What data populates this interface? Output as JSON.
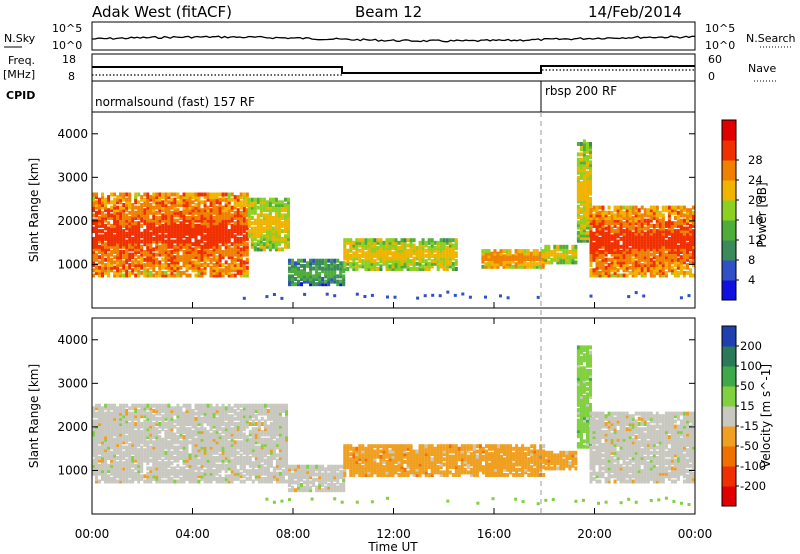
{
  "header": {
    "station": "Adak West (fitACF)",
    "beam": "Beam 12",
    "date": "14/Feb/2014"
  },
  "top_panel": {
    "left_label": "N.Sky",
    "right_label": "N.Search",
    "left_ticks": [
      "10^5",
      "10^0"
    ],
    "right_ticks": [
      "10^5",
      "10^0"
    ]
  },
  "freq_panel": {
    "left_label_1": "Freq.",
    "left_label_2": "[MHz]",
    "right_label": "Nave",
    "left_ticks": [
      "18",
      "8"
    ],
    "right_ticks": [
      "60",
      "0"
    ]
  },
  "cpid_panel": {
    "label": "CPID",
    "mode_1": "normalsound (fast) 157 RF",
    "mode_2": "rbsp 200 RF"
  },
  "chart_data": [
    {
      "type": "heatmap",
      "title": "Power",
      "ylabel": "Slant Range [km]",
      "y_ticks": [
        "1000",
        "2000",
        "3000",
        "4000"
      ],
      "ylim": [
        0,
        4500
      ],
      "colorbar": {
        "label": "Power [dB]",
        "ticks": [
          "4",
          "8",
          "12",
          "16",
          "20",
          "24",
          "28"
        ],
        "colors": [
          "#1010e0",
          "#3050c8",
          "#3a8a5a",
          "#4fae3a",
          "#8cd020",
          "#f0b400",
          "#f08000",
          "#f03000",
          "#e00000"
        ]
      },
      "regions": [
        {
          "x0": 0.0,
          "x1": 6.2,
          "y0": 700,
          "y1": 2600,
          "level": 26
        },
        {
          "x0": 6.2,
          "x1": 7.8,
          "y0": 1300,
          "y1": 2500,
          "level": 18
        },
        {
          "x0": 7.8,
          "x1": 10.0,
          "y0": 500,
          "y1": 1050,
          "level": 10
        },
        {
          "x0": 10.0,
          "x1": 14.5,
          "y0": 850,
          "y1": 1550,
          "level": 20
        },
        {
          "x0": 15.5,
          "x1": 18.0,
          "y0": 900,
          "y1": 1300,
          "level": 22
        },
        {
          "x0": 18.0,
          "x1": 19.3,
          "y0": 1000,
          "y1": 1400,
          "level": 20
        },
        {
          "x0": 19.3,
          "x1": 19.8,
          "y0": 1500,
          "y1": 3800,
          "level": 18
        },
        {
          "x0": 19.8,
          "x1": 24.0,
          "y0": 700,
          "y1": 2300,
          "level": 26
        }
      ]
    },
    {
      "type": "heatmap",
      "title": "Velocity",
      "ylabel": "Slant Range [km]",
      "y_ticks": [
        "1000",
        "2000",
        "3000",
        "4000"
      ],
      "ylim": [
        0,
        4500
      ],
      "colorbar": {
        "label": "Velocity [m s^-1]",
        "ticks": [
          "200",
          "100",
          "50",
          "15",
          "-15",
          "-50",
          "-100",
          "-200"
        ],
        "colors": [
          "#2040b0",
          "#2a7a5a",
          "#3fa84a",
          "#80d040",
          "#c8c8c0",
          "#f0a020",
          "#f07000",
          "#f03000",
          "#e00000"
        ]
      },
      "regions": [
        {
          "x0": 0.0,
          "x1": 7.8,
          "y0": 700,
          "y1": 2500,
          "level": 0
        },
        {
          "x0": 7.8,
          "x1": 10.0,
          "y0": 500,
          "y1": 1050,
          "level": 0
        },
        {
          "x0": 10.0,
          "x1": 18.0,
          "y0": 850,
          "y1": 1550,
          "level": -30
        },
        {
          "x0": 18.0,
          "x1": 19.3,
          "y0": 1000,
          "y1": 1400,
          "level": -30
        },
        {
          "x0": 19.3,
          "x1": 19.8,
          "y0": 1500,
          "y1": 3800,
          "level": 30
        },
        {
          "x0": 19.8,
          "x1": 24.0,
          "y0": 700,
          "y1": 2300,
          "level": 0
        }
      ]
    }
  ],
  "x_axis": {
    "label": "Time UT",
    "ticks": [
      "00:00",
      "04:00",
      "08:00",
      "12:00",
      "16:00",
      "20:00",
      "00:00"
    ],
    "xlim": [
      0,
      24
    ]
  },
  "colors": {
    "frame": "#000000",
    "dashed_marker": "#999999"
  }
}
